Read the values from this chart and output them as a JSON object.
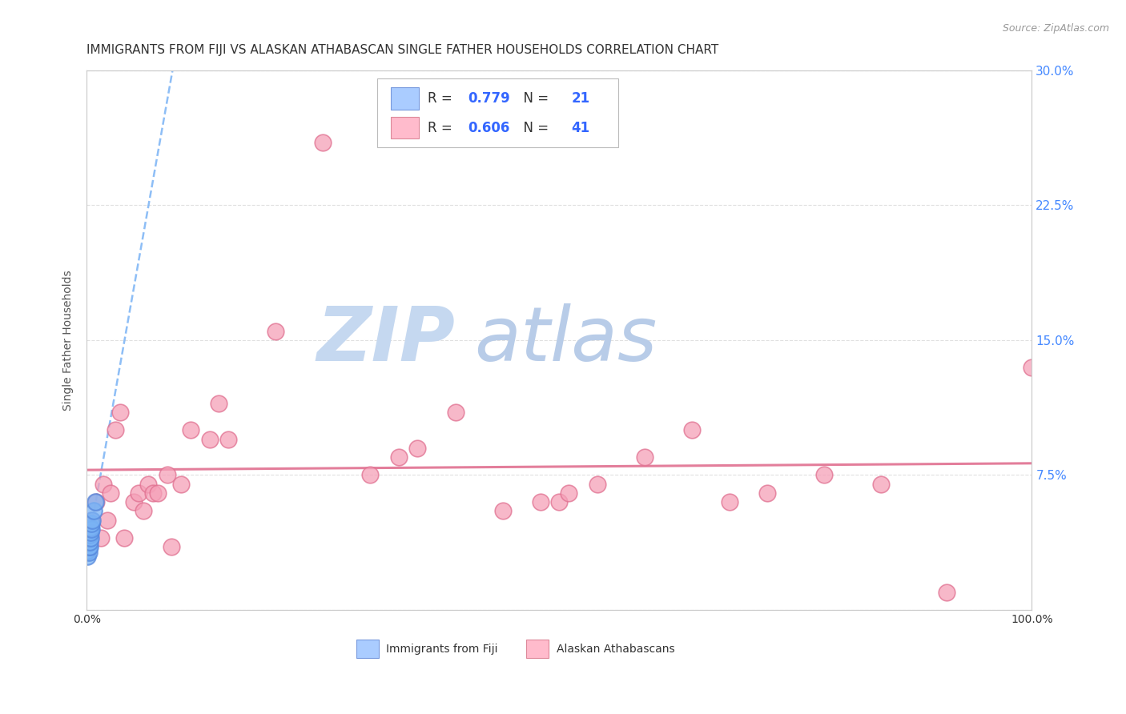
{
  "title": "IMMIGRANTS FROM FIJI VS ALASKAN ATHABASCAN SINGLE FATHER HOUSEHOLDS CORRELATION CHART",
  "source": "Source: ZipAtlas.com",
  "ylabel": "Single Father Households",
  "xlim": [
    0,
    1.0
  ],
  "ylim": [
    0,
    0.3
  ],
  "ytick_vals": [
    0,
    0.075,
    0.15,
    0.225,
    0.3
  ],
  "ytick_labels_right": [
    "",
    "7.5%",
    "15.0%",
    "22.5%",
    "30.0%"
  ],
  "fiji_R": 0.779,
  "fiji_N": 21,
  "athabascan_R": 0.606,
  "athabascan_N": 41,
  "fiji_color": "#7ab3f5",
  "fiji_edge_color": "#5588dd",
  "athabascan_color": "#f5a0b8",
  "athabascan_edge_color": "#e07090",
  "fiji_trendline_color": "#7ab3f5",
  "athabascan_trendline_color": "#e07090",
  "fiji_x": [
    0.0,
    0.001,
    0.001,
    0.001,
    0.001,
    0.001,
    0.002,
    0.002,
    0.002,
    0.002,
    0.003,
    0.003,
    0.003,
    0.004,
    0.004,
    0.004,
    0.005,
    0.005,
    0.006,
    0.007,
    0.009
  ],
  "fiji_y": [
    0.038,
    0.03,
    0.033,
    0.036,
    0.038,
    0.04,
    0.032,
    0.035,
    0.038,
    0.04,
    0.035,
    0.038,
    0.042,
    0.04,
    0.043,
    0.046,
    0.045,
    0.048,
    0.05,
    0.055,
    0.06
  ],
  "athabascan_x": [
    0.005,
    0.01,
    0.015,
    0.018,
    0.022,
    0.025,
    0.03,
    0.035,
    0.04,
    0.05,
    0.055,
    0.06,
    0.065,
    0.07,
    0.075,
    0.085,
    0.09,
    0.1,
    0.11,
    0.13,
    0.14,
    0.15,
    0.2,
    0.25,
    0.3,
    0.33,
    0.35,
    0.39,
    0.44,
    0.48,
    0.5,
    0.51,
    0.54,
    0.59,
    0.64,
    0.68,
    0.72,
    0.78,
    0.84,
    0.91,
    1.0
  ],
  "athabascan_y": [
    0.05,
    0.06,
    0.04,
    0.07,
    0.05,
    0.065,
    0.1,
    0.11,
    0.04,
    0.06,
    0.065,
    0.055,
    0.07,
    0.065,
    0.065,
    0.075,
    0.035,
    0.07,
    0.1,
    0.095,
    0.115,
    0.095,
    0.155,
    0.26,
    0.075,
    0.085,
    0.09,
    0.11,
    0.055,
    0.06,
    0.06,
    0.065,
    0.07,
    0.085,
    0.1,
    0.06,
    0.065,
    0.075,
    0.07,
    0.01,
    0.135
  ],
  "background_color": "#ffffff",
  "grid_color": "#dddddd",
  "title_fontsize": 11,
  "tick_right_color": "#4488ff",
  "watermark_zip_color": "#c5d8f0",
  "watermark_atlas_color": "#b8cce8"
}
